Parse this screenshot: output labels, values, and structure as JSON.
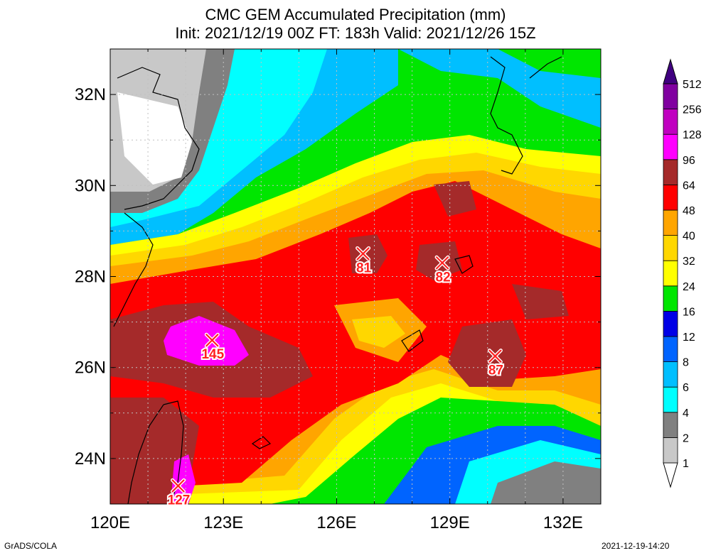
{
  "chart_data": {
    "type": "heatmap",
    "title": "CMC GEM Accumulated Precipitation (mm)",
    "subtitle": "Init: 2021/12/19 00Z  FT: 183h  Valid: 2021/12/26 15Z",
    "xlabel": "",
    "ylabel": "",
    "x_ticks": [
      "120E",
      "123E",
      "126E",
      "129E",
      "132E"
    ],
    "x_tick_values": [
      120,
      123,
      126,
      129,
      132
    ],
    "y_ticks": [
      "24N",
      "26N",
      "28N",
      "30N",
      "32N"
    ],
    "y_tick_values": [
      24,
      26,
      28,
      30,
      32
    ],
    "xlim": [
      120,
      133
    ],
    "ylim": [
      23,
      33
    ],
    "grid": true,
    "legend": "right",
    "colorbar": {
      "labels": [
        "1",
        "2",
        "4",
        "6",
        "8",
        "12",
        "16",
        "24",
        "32",
        "40",
        "48",
        "64",
        "96",
        "128",
        "256",
        "512"
      ],
      "colors": [
        "#ffffff",
        "#c8c8c8",
        "#808080",
        "#00ffff",
        "#00bfff",
        "#0064ff",
        "#0000e6",
        "#00e600",
        "#ffff00",
        "#ffd700",
        "#ffa500",
        "#ff0000",
        "#a52a2a",
        "#ff00ff",
        "#c000c0",
        "#8000a0",
        "#400080"
      ]
    },
    "maxima": [
      {
        "lon": 122.7,
        "lat": 26.6,
        "value": "145"
      },
      {
        "lon": 121.8,
        "lat": 23.4,
        "value": "127"
      },
      {
        "lon": 126.7,
        "lat": 28.5,
        "value": "81"
      },
      {
        "lon": 128.8,
        "lat": 28.3,
        "value": "82"
      },
      {
        "lon": 130.2,
        "lat": 26.25,
        "value": "87"
      }
    ]
  },
  "footer": {
    "left": "GrADS/COLA",
    "right": "2021-12-19-14:20"
  }
}
